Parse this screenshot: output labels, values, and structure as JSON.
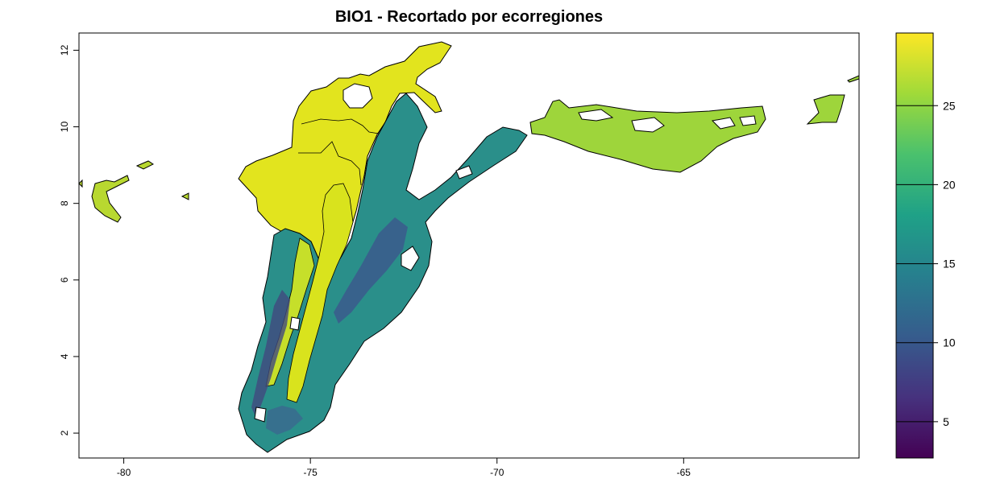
{
  "map": {
    "title": "BIO1 - Recortado por ecorregiones",
    "x_axis": {
      "ticks": [
        {
          "value": -80,
          "label": "-80"
        },
        {
          "value": -75,
          "label": "-75"
        },
        {
          "value": -70,
          "label": "-70"
        },
        {
          "value": -65,
          "label": "-65"
        }
      ],
      "range": [
        -81.2,
        -60.3
      ]
    },
    "y_axis": {
      "ticks": [
        {
          "value": 2,
          "label": "2"
        },
        {
          "value": 4,
          "label": "4"
        },
        {
          "value": 6,
          "label": "6"
        },
        {
          "value": 8,
          "label": "8"
        },
        {
          "value": 10,
          "label": "10"
        },
        {
          "value": 12,
          "label": "12"
        }
      ],
      "range": [
        1.35,
        12.45
      ]
    },
    "legend": {
      "min": 2.7,
      "max": 29.6,
      "ticks": [
        {
          "value": 5,
          "label": "5"
        },
        {
          "value": 10,
          "label": "10"
        },
        {
          "value": 15,
          "label": "15"
        },
        {
          "value": 20,
          "label": "20"
        },
        {
          "value": 25,
          "label": "25"
        }
      ],
      "colors": [
        "#440154",
        "#46327e",
        "#365c8d",
        "#277f8e",
        "#1fa187",
        "#4ac16d",
        "#a0da39",
        "#fde725"
      ]
    }
  }
}
